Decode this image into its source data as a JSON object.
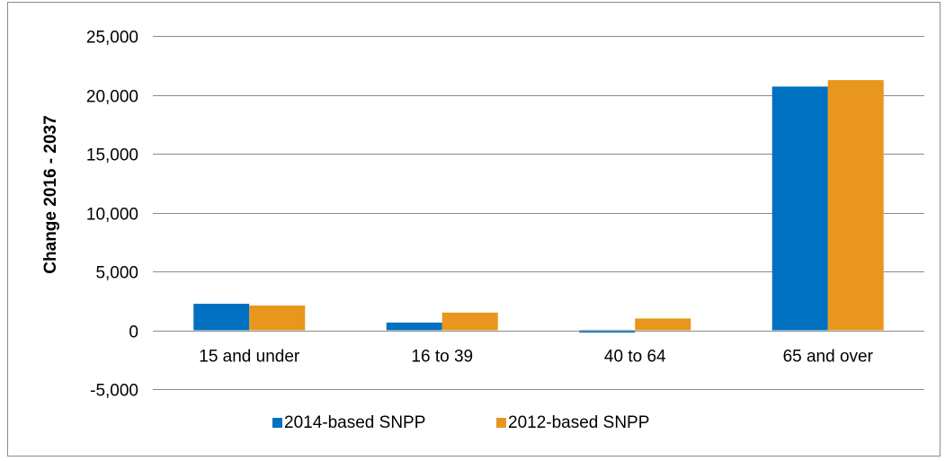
{
  "chart_data": {
    "type": "bar",
    "title": "",
    "xlabel": "",
    "ylabel": "Change 2016 - 2037",
    "categories": [
      "15 and under",
      "16 to 39",
      "40 to 64",
      "65 and over"
    ],
    "series": [
      {
        "name": "2014-based SNPP",
        "color": "#0070C0",
        "values": [
          2250,
          650,
          -200,
          20700
        ]
      },
      {
        "name": "2012-based SNPP",
        "color": "#E8961E",
        "values": [
          2100,
          1500,
          1000,
          21250
        ]
      }
    ],
    "ylim": [
      -5000,
      25000
    ],
    "yticks": [
      -5000,
      0,
      5000,
      10000,
      15000,
      20000,
      25000
    ],
    "ytick_labels": [
      "-5,000",
      "0",
      "5,000",
      "10,000",
      "15,000",
      "20,000",
      "25,000"
    ],
    "grid": true,
    "legend": "bottom"
  }
}
